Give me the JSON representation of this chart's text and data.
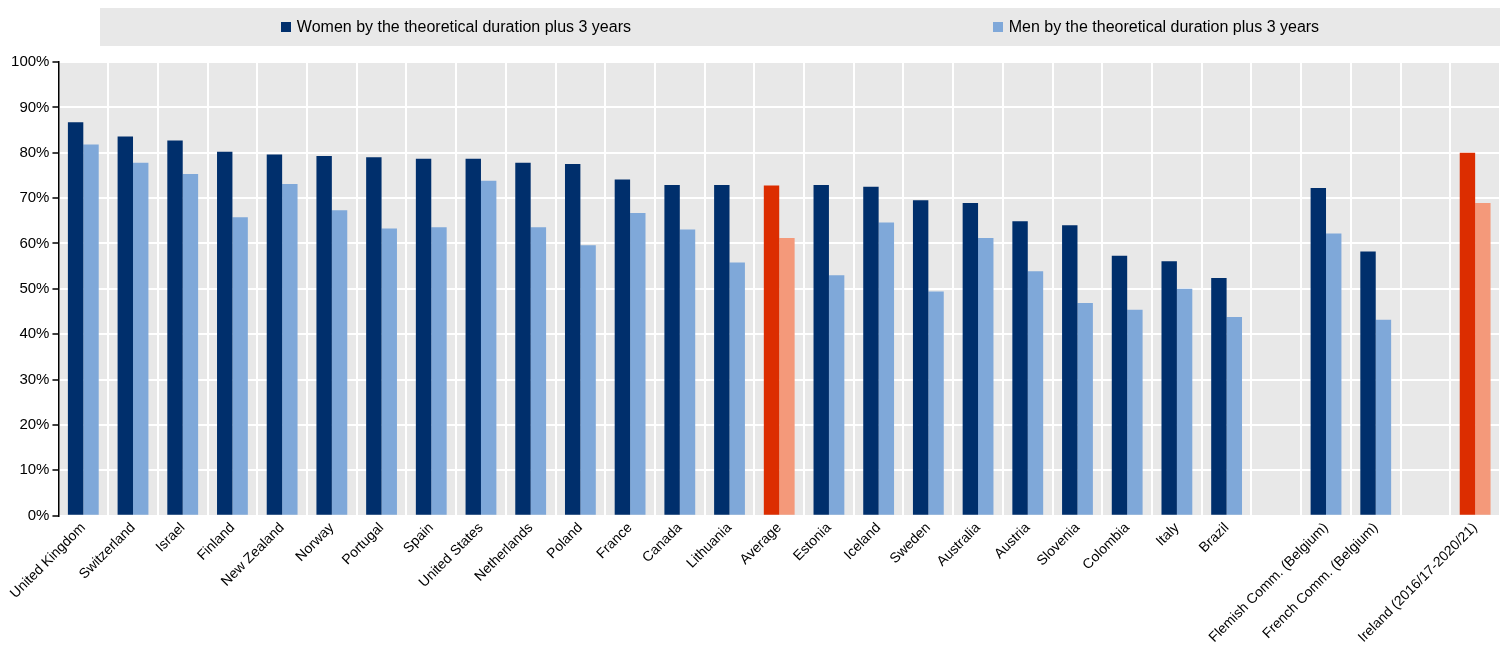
{
  "chart_data": {
    "type": "bar",
    "categories": [
      "United Kingdom",
      "Switzerland",
      "Israel",
      "Finland",
      "New Zealand",
      "Norway",
      "Portugal",
      "Spain",
      "United States",
      "Netherlands",
      "Poland",
      "France",
      "Canada",
      "Lithuania",
      "Average",
      "Estonia",
      "Iceland",
      "Sweden",
      "Australia",
      "Austria",
      "Slovenia",
      "Colombia",
      "Italy",
      "Brazil",
      null,
      "Flemish Comm. (Belgium)",
      "French Comm. (Belgium)",
      null,
      "Ireland (2016/17-2020/21)"
    ],
    "series": [
      {
        "name": "Women by the theoretical duration plus 3 years",
        "color": "#002f6c",
        "colors": [
          "#002f6c",
          "#002f6c",
          "#002f6c",
          "#002f6c",
          "#002f6c",
          "#002f6c",
          "#002f6c",
          "#002f6c",
          "#002f6c",
          "#002f6c",
          "#002f6c",
          "#002f6c",
          "#002f6c",
          "#002f6c",
          "#dc2d00",
          "#002f6c",
          "#002f6c",
          "#002f6c",
          "#002f6c",
          "#002f6c",
          "#002f6c",
          "#002f6c",
          "#002f6c",
          "#002f6c",
          "#002f6c",
          "#002f6c",
          "#002f6c",
          "#002f6c",
          "#dc2d00"
        ],
        "values": [
          86.7,
          83.6,
          82.7,
          80.2,
          79.6,
          79.3,
          79.0,
          78.7,
          78.7,
          77.8,
          77.5,
          74.1,
          72.9,
          72.9,
          72.8,
          72.9,
          72.5,
          69.5,
          68.9,
          64.9,
          64.0,
          57.3,
          56.1,
          52.4,
          null,
          72.2,
          58.2,
          null,
          80.0
        ]
      },
      {
        "name": "Men by the theoretical duration plus 3 years",
        "color": "#7fa8d9",
        "colors": [
          "#7fa8d9",
          "#7fa8d9",
          "#7fa8d9",
          "#7fa8d9",
          "#7fa8d9",
          "#7fa8d9",
          "#7fa8d9",
          "#7fa8d9",
          "#7fa8d9",
          "#7fa8d9",
          "#7fa8d9",
          "#7fa8d9",
          "#7fa8d9",
          "#7fa8d9",
          "#f4997a",
          "#7fa8d9",
          "#7fa8d9",
          "#7fa8d9",
          "#7fa8d9",
          "#7fa8d9",
          "#7fa8d9",
          "#7fa8d9",
          "#7fa8d9",
          "#7fa8d9",
          "#7fa8d9",
          "#7fa8d9",
          "#7fa8d9",
          "#7fa8d9",
          "#f4997a"
        ],
        "values": [
          81.8,
          77.8,
          75.3,
          65.8,
          73.1,
          67.3,
          63.3,
          63.6,
          73.8,
          63.6,
          59.6,
          66.7,
          63.1,
          55.8,
          61.2,
          53.0,
          64.6,
          49.4,
          61.2,
          53.9,
          46.9,
          45.4,
          50.0,
          43.8,
          null,
          62.2,
          43.2,
          null,
          68.9
        ]
      }
    ],
    "ylim": [
      0,
      100
    ],
    "yticks": [
      {
        "value": 0,
        "label": "0%"
      },
      {
        "value": 10,
        "label": "10%"
      },
      {
        "value": 20,
        "label": "20%"
      },
      {
        "value": 30,
        "label": "30%"
      },
      {
        "value": 40,
        "label": "40%"
      },
      {
        "value": 50,
        "label": "50%"
      },
      {
        "value": 60,
        "label": "60%"
      },
      {
        "value": 70,
        "label": "70%"
      },
      {
        "value": 80,
        "label": "80%"
      },
      {
        "value": 90,
        "label": "90%"
      },
      {
        "value": 100,
        "label": "100%"
      }
    ],
    "grid": true,
    "legend": "top"
  }
}
